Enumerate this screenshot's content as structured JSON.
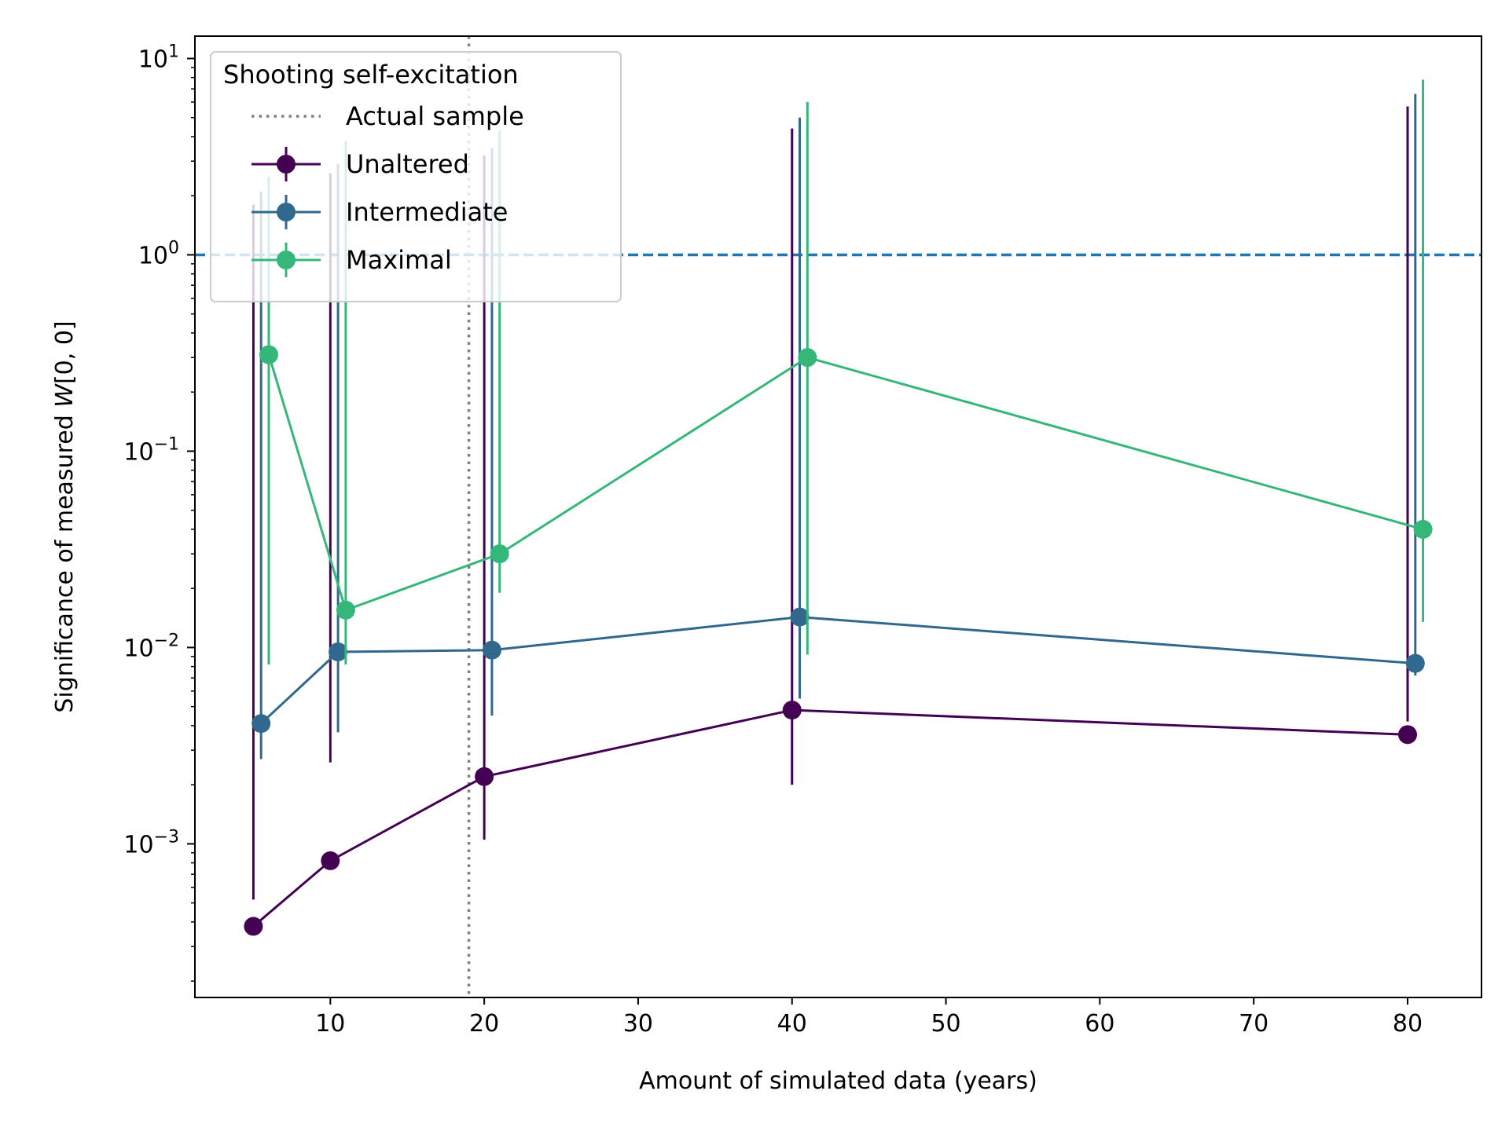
{
  "chart_data": {
    "type": "line",
    "xlabel": "Amount of simulated data (years)",
    "ylabel_prefix": "Significance of measured ",
    "ylabel_var": "W",
    "ylabel_suffix": "[0, 0]",
    "xlim": [
      1.2,
      84.8
    ],
    "ylim": [
      0.000165,
      13
    ],
    "yscale": "log",
    "x_ticks": [
      10,
      20,
      30,
      40,
      50,
      60,
      70,
      80
    ],
    "y_ticks": [
      {
        "value": 0.001,
        "base": "10",
        "exp": "−3"
      },
      {
        "value": 0.01,
        "base": "10",
        "exp": "−2"
      },
      {
        "value": 0.1,
        "base": "10",
        "exp": "−1"
      },
      {
        "value": 1,
        "base": "10",
        "exp": "0"
      },
      {
        "value": 10,
        "base": "10",
        "exp": "1"
      }
    ],
    "reference_lines": {
      "horizontal": {
        "value": 1,
        "color": "#1f77b4",
        "style": "dashed"
      },
      "vertical": {
        "value": 19,
        "color": "#808080",
        "style": "dotted",
        "label": "Actual sample"
      }
    },
    "legend": {
      "title": "Shooting self-excitation",
      "placement": "top-left"
    },
    "series": [
      {
        "name": "Unaltered",
        "color": "#440154",
        "x": [
          5,
          10,
          20,
          40,
          80
        ],
        "y": [
          0.00038,
          0.00082,
          0.0022,
          0.0048,
          0.0036
        ],
        "yerr_low": [
          0.00052,
          0.0026,
          0.00105,
          0.002,
          0.0042
        ],
        "yerr_high": [
          1.8,
          2.6,
          3.2,
          4.4,
          5.7
        ]
      },
      {
        "name": "Intermediate",
        "color": "#31688e",
        "x": [
          5.5,
          10.5,
          20.5,
          40.5,
          80.5
        ],
        "y": [
          0.0041,
          0.0095,
          0.0097,
          0.0143,
          0.0083
        ],
        "yerr_low": [
          0.0027,
          0.0037,
          0.0045,
          0.0055,
          0.0072
        ],
        "yerr_high": [
          2.1,
          2.9,
          3.5,
          5.0,
          6.6
        ]
      },
      {
        "name": "Maximal",
        "color": "#35b779",
        "x": [
          6,
          11,
          21,
          41,
          81
        ],
        "y": [
          0.31,
          0.0155,
          0.03,
          0.3,
          0.04
        ],
        "yerr_low": [
          0.0082,
          0.0082,
          0.019,
          0.0092,
          0.0135
        ],
        "yerr_high": [
          2.5,
          3.8,
          4.3,
          6.0,
          7.8
        ]
      }
    ]
  }
}
